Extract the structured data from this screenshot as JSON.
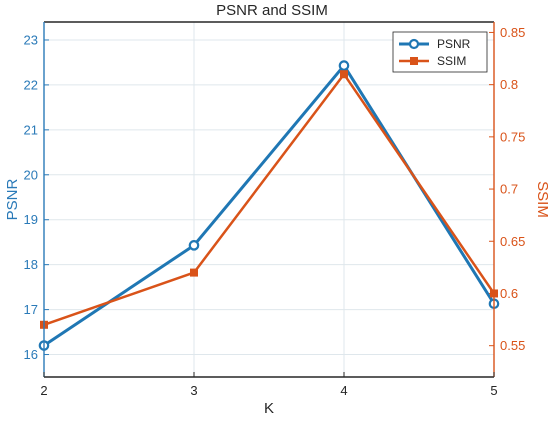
{
  "chart_data": {
    "type": "line",
    "title": "PSNR and SSIM",
    "xlabel": "K",
    "x": [
      2,
      3,
      4,
      5
    ],
    "xlim": [
      2,
      5
    ],
    "xticks": [
      "2",
      "3",
      "4",
      "5"
    ],
    "ylabel_left": "PSNR",
    "ylim_left": [
      15.5,
      23.4
    ],
    "yticks_left": [
      "16",
      "17",
      "18",
      "19",
      "20",
      "21",
      "22",
      "23"
    ],
    "ylabel_right": "SSIM",
    "ylim_right": [
      0.52,
      0.86
    ],
    "yticks_right": [
      "0.55",
      "0.6",
      "0.65",
      "0.7",
      "0.75",
      "0.8",
      "0.85"
    ],
    "grid": true,
    "legend_position": "top-right",
    "series": [
      {
        "name": "PSNR",
        "axis": "left",
        "values": [
          16.2,
          18.43,
          22.43,
          17.13
        ],
        "color": "#1f77b4",
        "marker": "circle"
      },
      {
        "name": "SSIM",
        "axis": "right",
        "values": [
          0.57,
          0.62,
          0.81,
          0.6
        ],
        "color": "#d95319",
        "marker": "square"
      }
    ]
  },
  "colors": {
    "left_axis": "#2a7ab8",
    "right_axis": "#d95319",
    "x_axis": "#262626"
  }
}
